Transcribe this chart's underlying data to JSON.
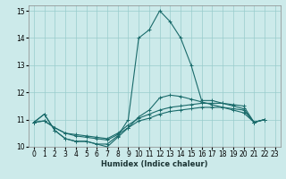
{
  "xlabel": "Humidex (Indice chaleur)",
  "background_color": "#cceaea",
  "grid_color": "#99cccc",
  "line_color": "#1a6b6b",
  "xlim": [
    -0.5,
    23.5
  ],
  "ylim": [
    10,
    15.2
  ],
  "yticks": [
    10,
    11,
    12,
    13,
    14,
    15
  ],
  "xticks": [
    0,
    1,
    2,
    3,
    4,
    5,
    6,
    7,
    8,
    9,
    10,
    11,
    12,
    13,
    14,
    15,
    16,
    17,
    18,
    19,
    20,
    21,
    22,
    23
  ],
  "series": [
    [
      10.9,
      11.2,
      10.6,
      10.3,
      10.2,
      10.2,
      10.1,
      10.1,
      10.4,
      11.0,
      14.0,
      14.3,
      15.0,
      14.6,
      14.0,
      13.0,
      11.7,
      11.7,
      11.6,
      11.5,
      11.4,
      10.9,
      11.0
    ],
    [
      10.9,
      11.2,
      10.6,
      10.3,
      10.2,
      10.2,
      10.1,
      10.0,
      10.35,
      10.7,
      11.1,
      11.35,
      11.8,
      11.9,
      11.85,
      11.75,
      11.65,
      11.55,
      11.45,
      11.35,
      11.25,
      10.9,
      11.0
    ],
    [
      10.9,
      10.95,
      10.7,
      10.5,
      10.45,
      10.4,
      10.35,
      10.3,
      10.5,
      10.8,
      11.05,
      11.2,
      11.35,
      11.45,
      11.5,
      11.55,
      11.6,
      11.6,
      11.6,
      11.55,
      11.5,
      10.9,
      11.0
    ],
    [
      10.9,
      10.95,
      10.7,
      10.5,
      10.4,
      10.35,
      10.3,
      10.25,
      10.45,
      10.7,
      10.95,
      11.05,
      11.2,
      11.3,
      11.35,
      11.4,
      11.45,
      11.45,
      11.45,
      11.4,
      11.35,
      10.9,
      11.0
    ]
  ]
}
